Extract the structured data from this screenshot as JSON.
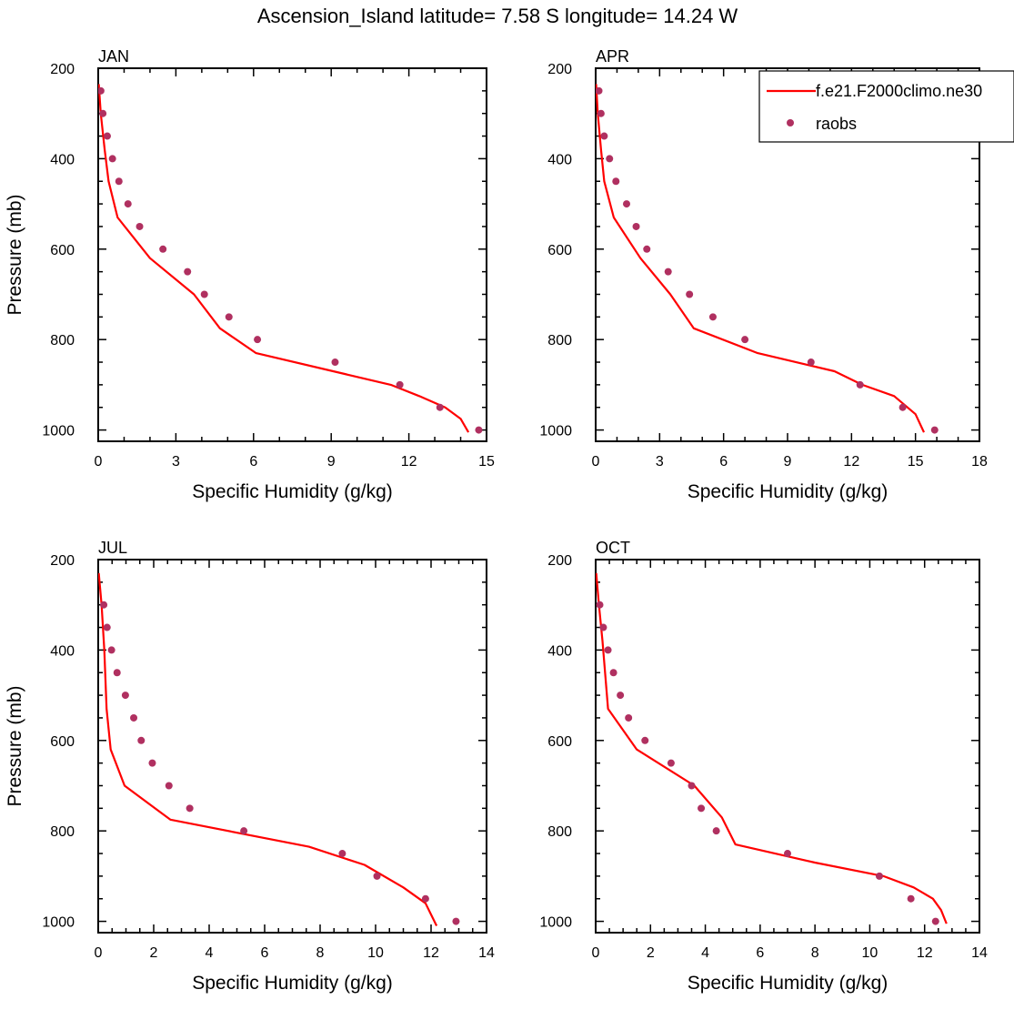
{
  "title": "Ascension_Island  latitude= 7.58 S longitude= 14.24 W",
  "colors": {
    "model": "#ff0000",
    "obs": "#b03060",
    "axis": "#000000"
  },
  "chart_data": [
    {
      "type": "line",
      "title": "JAN",
      "xlabel": "Specific Humidity (g/kg)",
      "ylabel": "Pressure (mb)",
      "xlim": [
        0,
        15
      ],
      "ylim": [
        200,
        1025
      ],
      "y_reversed": true,
      "xticks": [
        0,
        3,
        6,
        9,
        12,
        15
      ],
      "yticks": [
        200,
        400,
        600,
        800,
        1000
      ],
      "series": [
        {
          "name": "f.e21.F2000climo.ne30",
          "kind": "line",
          "x": [
            0.02,
            0.1,
            0.25,
            0.4,
            0.75,
            2.0,
            3.7,
            4.7,
            6.1,
            11.3,
            12.4,
            13.4,
            14.0,
            14.3
          ],
          "y": [
            235,
            300,
            380,
            450,
            530,
            620,
            700,
            775,
            830,
            900,
            925,
            950,
            975,
            1005
          ]
        },
        {
          "name": "raobs",
          "kind": "scatter",
          "x": [
            0.1,
            0.18,
            0.35,
            0.55,
            0.8,
            1.15,
            1.6,
            2.5,
            3.45,
            4.1,
            5.05,
            6.15,
            9.15,
            11.65,
            13.2,
            14.7
          ],
          "y": [
            250,
            300,
            350,
            400,
            450,
            500,
            550,
            600,
            650,
            700,
            750,
            800,
            850,
            900,
            950,
            1000
          ]
        }
      ]
    },
    {
      "type": "line",
      "title": "APR",
      "xlabel": "Specific Humidity (g/kg)",
      "ylabel": "",
      "xlim": [
        0,
        18
      ],
      "ylim": [
        200,
        1025
      ],
      "y_reversed": true,
      "xticks": [
        0,
        3,
        6,
        9,
        12,
        15,
        18
      ],
      "yticks": [
        200,
        400,
        600,
        800,
        1000
      ],
      "legend": {
        "position": "top-right"
      },
      "series": [
        {
          "name": "f.e21.F2000climo.ne30",
          "kind": "line",
          "x": [
            0.02,
            0.1,
            0.25,
            0.4,
            0.85,
            2.1,
            3.5,
            4.6,
            7.6,
            11.2,
            12.5,
            14.0,
            15.0,
            15.4
          ],
          "y": [
            235,
            300,
            380,
            450,
            530,
            620,
            700,
            775,
            830,
            870,
            900,
            925,
            965,
            1005
          ]
        },
        {
          "name": "raobs",
          "kind": "scatter",
          "x": [
            0.15,
            0.25,
            0.4,
            0.65,
            0.95,
            1.45,
            1.9,
            2.4,
            3.4,
            4.4,
            5.5,
            7.0,
            10.1,
            12.4,
            14.4,
            15.9
          ],
          "y": [
            250,
            300,
            350,
            400,
            450,
            500,
            550,
            600,
            650,
            700,
            750,
            800,
            850,
            900,
            950,
            1000
          ]
        }
      ]
    },
    {
      "type": "line",
      "title": "JUL",
      "xlabel": "Specific Humidity (g/kg)",
      "ylabel": "Pressure (mb)",
      "xlim": [
        0,
        14
      ],
      "ylim": [
        200,
        1025
      ],
      "y_reversed": true,
      "xticks": [
        0,
        2,
        4,
        6,
        8,
        10,
        12,
        14
      ],
      "yticks": [
        200,
        400,
        600,
        800,
        1000
      ],
      "series": [
        {
          "name": "f.e21.F2000climo.ne30",
          "kind": "line",
          "x": [
            0.02,
            0.12,
            0.22,
            0.3,
            0.45,
            0.95,
            2.6,
            7.6,
            9.6,
            11.0,
            11.8,
            12.0,
            12.2
          ],
          "y": [
            230,
            300,
            400,
            530,
            620,
            700,
            775,
            835,
            875,
            925,
            960,
            985,
            1010
          ]
        },
        {
          "name": "raobs",
          "kind": "scatter",
          "x": [
            0.2,
            0.32,
            0.48,
            0.68,
            0.98,
            1.28,
            1.55,
            1.95,
            2.55,
            3.3,
            5.25,
            8.8,
            10.05,
            11.8,
            12.9
          ],
          "y": [
            300,
            350,
            400,
            450,
            500,
            550,
            600,
            650,
            700,
            750,
            800,
            850,
            900,
            950,
            1000
          ]
        }
      ]
    },
    {
      "type": "line",
      "title": "OCT",
      "xlabel": "Specific Humidity (g/kg)",
      "ylabel": "",
      "xlim": [
        0,
        14
      ],
      "ylim": [
        200,
        1025
      ],
      "y_reversed": true,
      "xticks": [
        0,
        2,
        4,
        6,
        8,
        10,
        12,
        14
      ],
      "yticks": [
        200,
        400,
        600,
        800,
        1000
      ],
      "series": [
        {
          "name": "f.e21.F2000climo.ne30",
          "kind": "line",
          "x": [
            0.02,
            0.12,
            0.25,
            0.45,
            1.5,
            3.6,
            4.6,
            5.1,
            8.0,
            10.5,
            11.6,
            12.3,
            12.6,
            12.8
          ],
          "y": [
            230,
            300,
            380,
            530,
            620,
            700,
            770,
            830,
            870,
            900,
            925,
            950,
            975,
            1005
          ]
        },
        {
          "name": "raobs",
          "kind": "scatter",
          "x": [
            0.15,
            0.28,
            0.45,
            0.65,
            0.9,
            1.2,
            1.8,
            2.75,
            3.5,
            3.85,
            4.4,
            7.0,
            10.35,
            11.5,
            12.4
          ],
          "y": [
            300,
            350,
            400,
            450,
            500,
            550,
            600,
            650,
            700,
            750,
            800,
            850,
            900,
            950,
            1000
          ]
        }
      ]
    }
  ],
  "legend": {
    "entries": [
      {
        "label": "f.e21.F2000climo.ne30"
      },
      {
        "label": "raobs"
      }
    ]
  }
}
